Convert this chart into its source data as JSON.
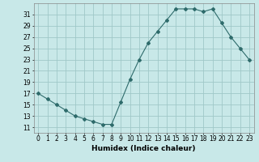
{
  "x": [
    0,
    1,
    2,
    3,
    4,
    5,
    6,
    7,
    8,
    9,
    10,
    11,
    12,
    13,
    14,
    15,
    16,
    17,
    18,
    19,
    20,
    21,
    22,
    23
  ],
  "y": [
    17,
    16,
    15,
    14,
    13,
    12.5,
    12,
    11.5,
    11.5,
    15.5,
    19.5,
    23,
    26,
    28,
    30,
    32,
    32,
    32,
    31.5,
    32,
    29.5,
    27,
    25,
    23
  ],
  "line_color": "#2e6b6b",
  "marker": "D",
  "marker_size": 2,
  "bg_color": "#c8e8e8",
  "grid_color": "#a0c8c8",
  "xlabel": "Humidex (Indice chaleur)",
  "ylim": [
    10,
    33
  ],
  "xlim": [
    -0.5,
    23.5
  ],
  "yticks": [
    11,
    13,
    15,
    17,
    19,
    21,
    23,
    25,
    27,
    29,
    31
  ],
  "xticks": [
    0,
    1,
    2,
    3,
    4,
    5,
    6,
    7,
    8,
    9,
    10,
    11,
    12,
    13,
    14,
    15,
    16,
    17,
    18,
    19,
    20,
    21,
    22,
    23
  ],
  "tick_font_size": 5.5,
  "xlabel_font_size": 6.5
}
